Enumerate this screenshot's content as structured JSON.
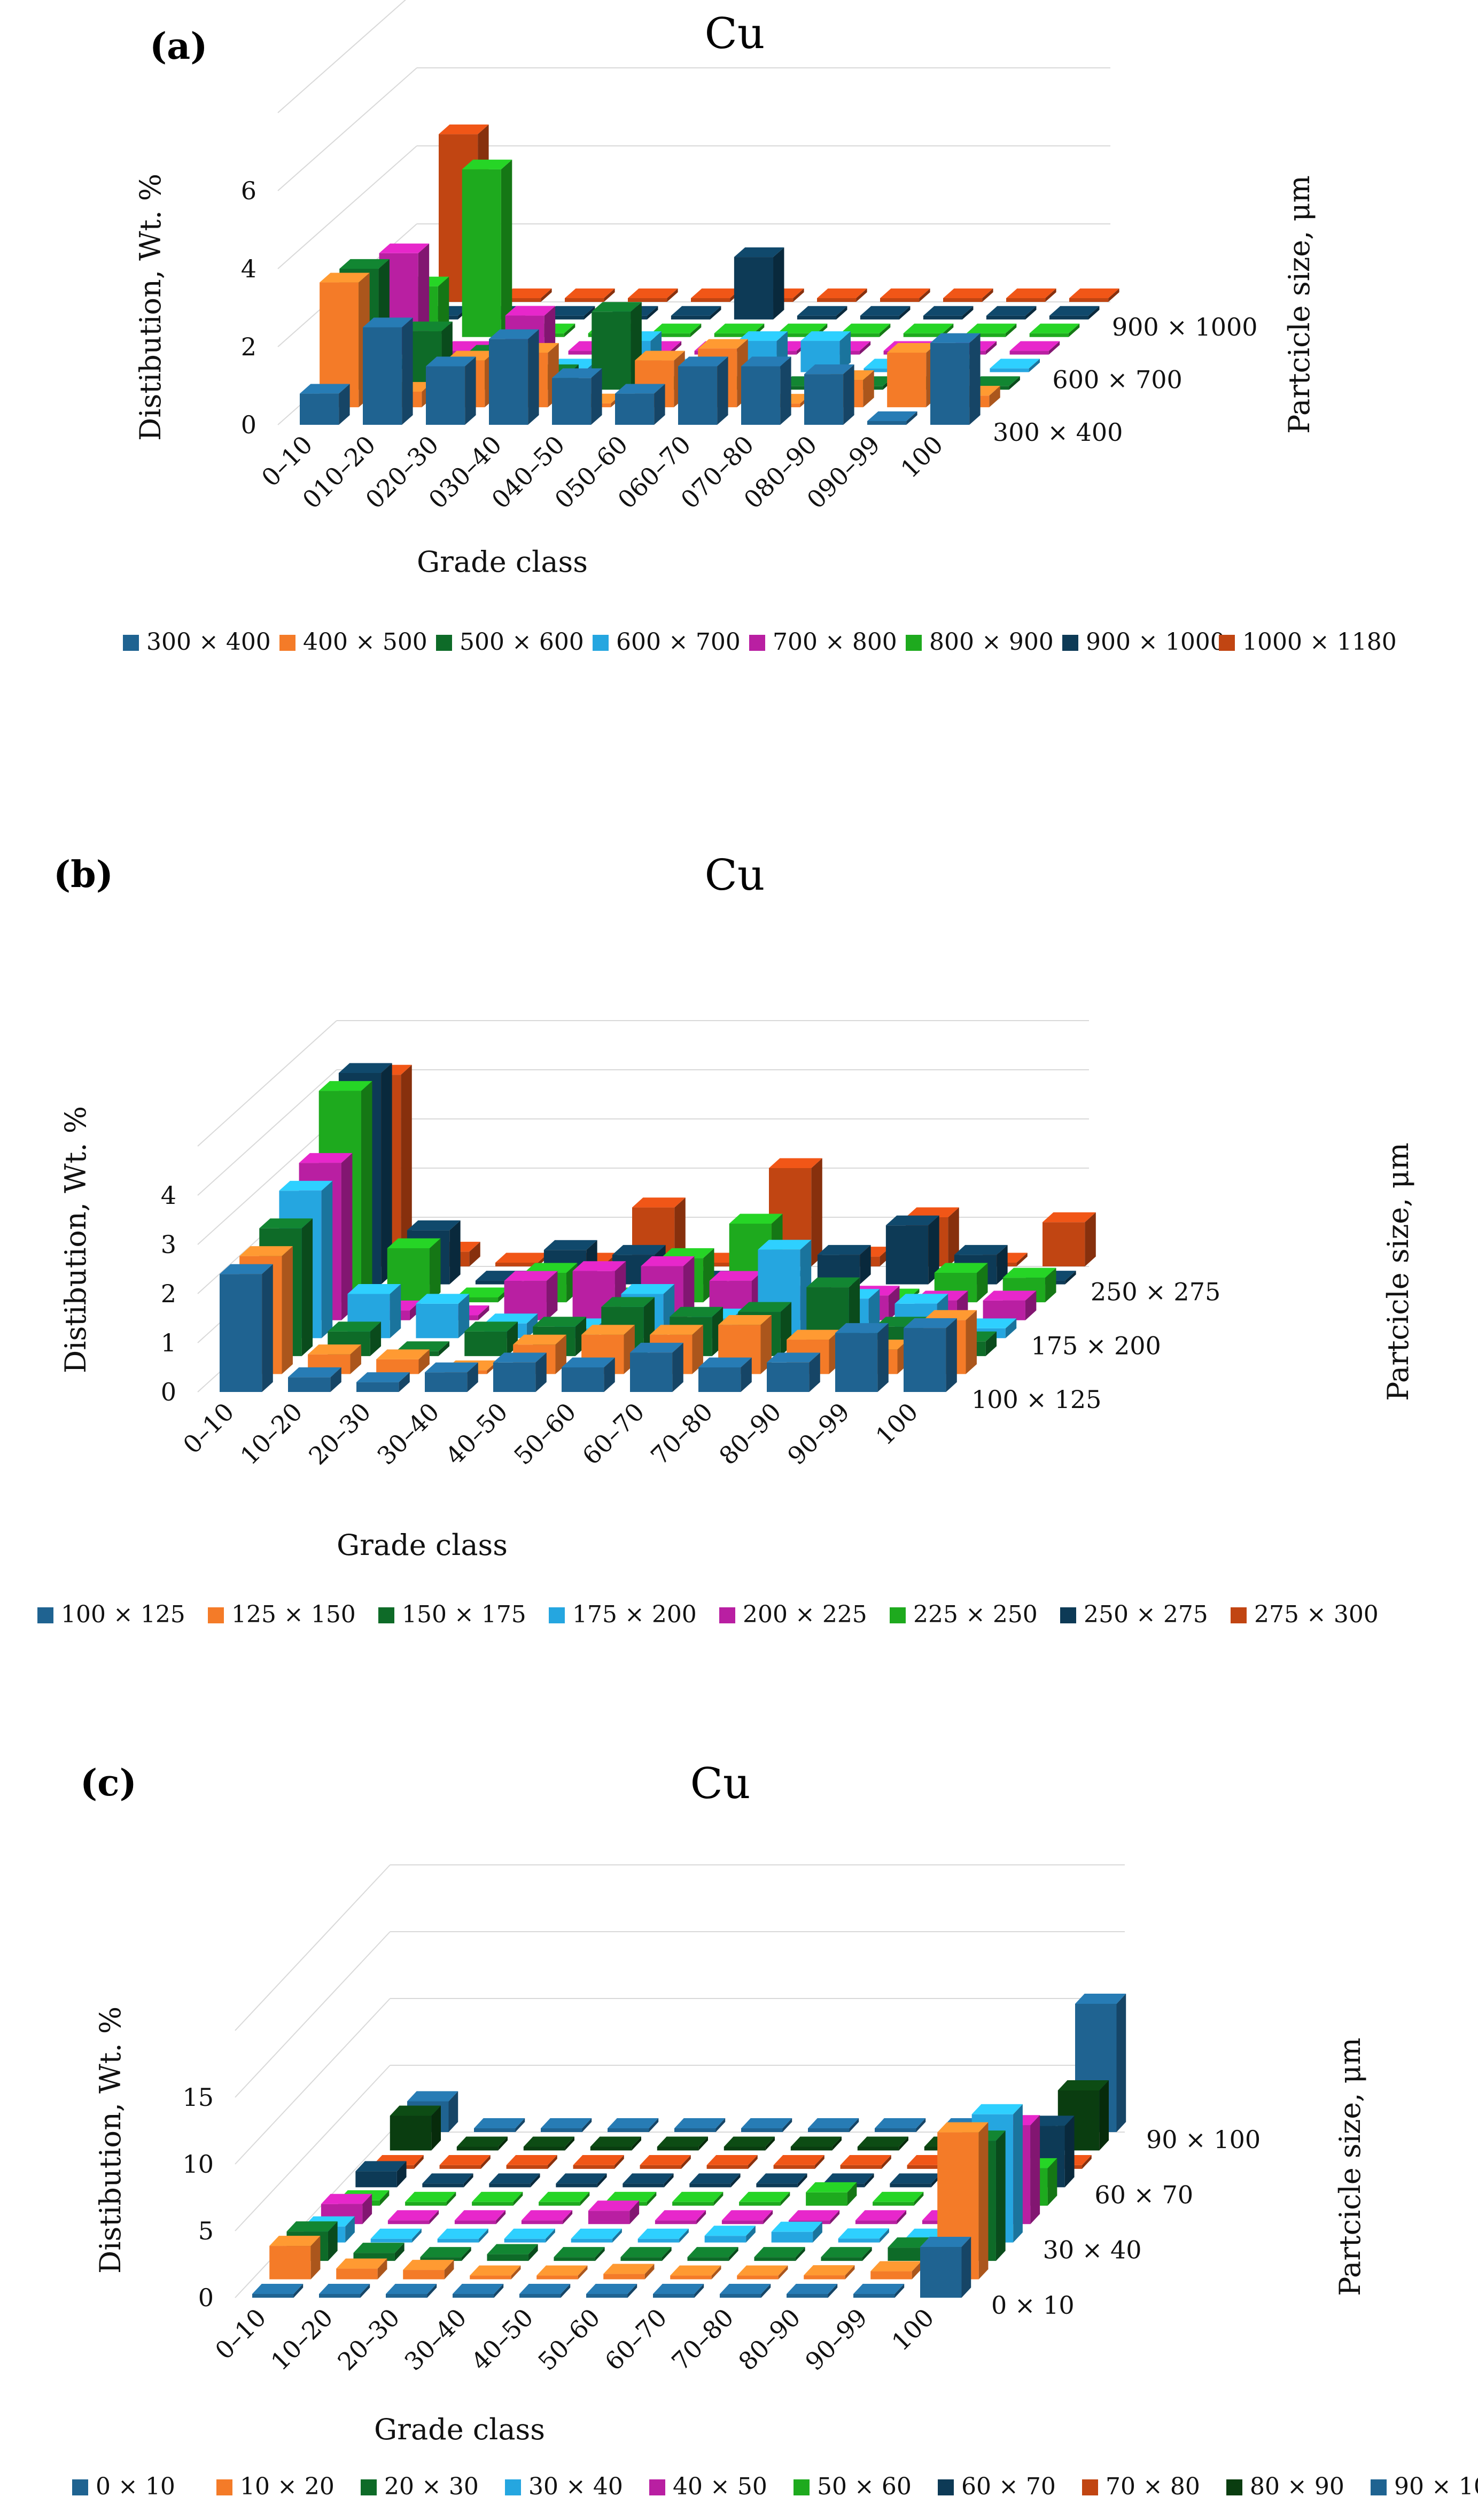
{
  "panels": [
    {
      "label": "(a)",
      "title": "Cu",
      "ylabel": "Distibution, Wt. %",
      "xlabel": "Grade class",
      "zlabel": "Partcicle size, μm",
      "yticks": [
        "0",
        "2",
        "4",
        "6"
      ],
      "zticks": [
        "300 × 400",
        "600 × 700",
        "900 × 1000"
      ],
      "ytickvals": [
        0,
        2,
        4,
        6
      ],
      "zticks_index": [
        0,
        3,
        6
      ],
      "chart_data": {
        "type": "bar",
        "title": "Cu",
        "xlabel": "Grade class",
        "ylabel": "Distibution, Wt. %",
        "zlabel": "Partcicle size, μm",
        "ylim": [
          0,
          8
        ],
        "categories": [
          "0–10",
          "010–20",
          "020–30",
          "030–40",
          "040–50",
          "050–60",
          "060–70",
          "070–80",
          "080–90",
          "090–99",
          "100"
        ],
        "series": [
          {
            "name": "300 × 400",
            "color": "#1f6391",
            "values": [
              0.8,
              2.5,
              1.5,
              2.2,
              1.2,
              0.8,
              1.5,
              1.5,
              1.3,
              0.0,
              2.1
            ]
          },
          {
            "name": "400 × 500",
            "color": "#f47b28",
            "values": [
              3.2,
              0.4,
              1.2,
              1.4,
              0.1,
              1.2,
              1.5,
              0.0,
              0.7,
              1.4,
              0.3
            ]
          },
          {
            "name": "500 × 600",
            "color": "#0e6b28",
            "values": [
              3.1,
              1.5,
              0.9,
              0.4,
              2.0,
              0.0,
              0.0,
              0.0,
              0.0,
              0.0,
              0.0
            ]
          },
          {
            "name": "600 × 700",
            "color": "#25a6e0",
            "values": [
              0.0,
              0.0,
              0.0,
              0.0,
              0.8,
              0.0,
              0.8,
              0.8,
              0.0,
              0.0,
              0.0
            ]
          },
          {
            "name": "700 × 800",
            "color": "#b91fa2",
            "values": [
              2.6,
              0.0,
              1.0,
              0.0,
              0.0,
              0.0,
              0.0,
              0.0,
              0.0,
              0.0,
              0.0
            ]
          },
          {
            "name": "800 × 900",
            "color": "#1eaa1e",
            "values": [
              1.3,
              4.3,
              0.0,
              0.0,
              0.0,
              0.0,
              0.0,
              0.0,
              0.0,
              0.0,
              0.0
            ]
          },
          {
            "name": "900 × 1000",
            "color": "#0d3a56",
            "values": [
              0.0,
              0.0,
              0.0,
              0.0,
              0.0,
              1.6,
              0.0,
              0.0,
              0.0,
              0.0,
              0.0
            ]
          },
          {
            "name": "1000 × 1180",
            "color": "#c14512",
            "values": [
              4.3,
              0.0,
              0.0,
              0.0,
              0.0,
              0.0,
              0.0,
              0.0,
              0.0,
              0.0,
              0.0
            ]
          }
        ]
      }
    },
    {
      "label": "(b)",
      "title": "Cu",
      "ylabel": "Distibution, Wt. %",
      "xlabel": "Grade class",
      "zlabel": "Partcicle size, μm",
      "yticks": [
        "0",
        "1",
        "2",
        "3",
        "4"
      ],
      "zticks": [
        "100 × 125",
        "175 × 200",
        "250 × 275"
      ],
      "ytickvals": [
        0,
        1,
        2,
        3,
        4
      ],
      "zticks_index": [
        0,
        3,
        6
      ],
      "chart_data": {
        "type": "bar",
        "title": "Cu",
        "xlabel": "Grade class",
        "ylabel": "Distibution, Wt. %",
        "zlabel": "Partcicle size, μm",
        "ylim": [
          0,
          5
        ],
        "categories": [
          "0–10",
          "10–20",
          "20–30",
          "30–40",
          "40–50",
          "50–60",
          "60–70",
          "70–80",
          "80–90",
          "90–99",
          "100"
        ],
        "series": [
          {
            "name": "100 × 125",
            "color": "#1f6391",
            "values": [
              2.4,
              0.3,
              0.2,
              0.4,
              0.6,
              0.5,
              0.8,
              0.5,
              0.6,
              1.2,
              1.3
            ]
          },
          {
            "name": "125 × 150",
            "color": "#f47b28",
            "values": [
              2.4,
              0.4,
              0.3,
              0.0,
              0.6,
              0.8,
              0.8,
              1.0,
              0.7,
              0.5,
              1.1
            ]
          },
          {
            "name": "150 × 175",
            "color": "#0e6b28",
            "values": [
              2.6,
              0.5,
              0.1,
              0.5,
              0.6,
              1.0,
              0.8,
              0.9,
              1.4,
              0.6,
              0.3
            ]
          },
          {
            "name": "175 × 200",
            "color": "#25a6e0",
            "values": [
              3.0,
              0.9,
              0.7,
              0.3,
              0.2,
              0.9,
              0.4,
              1.8,
              0.8,
              0.7,
              0.2
            ]
          },
          {
            "name": "200 × 225",
            "color": "#b91fa2",
            "values": [
              3.2,
              0.2,
              0.1,
              0.8,
              1.0,
              1.1,
              0.8,
              0.5,
              0.5,
              0.4,
              0.4
            ]
          },
          {
            "name": "225 × 250",
            "color": "#1eaa1e",
            "values": [
              4.3,
              1.1,
              0.1,
              0.6,
              0.1,
              0.9,
              1.6,
              0.1,
              0.0,
              0.6,
              0.5
            ]
          },
          {
            "name": "250 × 275",
            "color": "#0d3a56",
            "values": [
              4.3,
              1.1,
              0.0,
              0.7,
              0.6,
              0.0,
              0.0,
              0.6,
              1.2,
              0.6,
              0.0
            ]
          },
          {
            "name": "275 × 300",
            "color": "#c14512",
            "values": [
              3.9,
              0.3,
              0.0,
              0.0,
              1.2,
              0.0,
              2.0,
              0.2,
              1.0,
              0.0,
              0.9
            ]
          }
        ]
      }
    },
    {
      "label": "(c)",
      "title": "Cu",
      "ylabel": "Distibution, Wt. %",
      "xlabel": "Grade class",
      "zlabel": "Partcicle size, μm",
      "yticks": [
        "0",
        "5",
        "10",
        "15"
      ],
      "zticks": [
        "0 × 10",
        "30 × 40",
        "60 × 70",
        "90 × 100"
      ],
      "ytickvals": [
        0,
        5,
        10,
        15
      ],
      "zticks_index": [
        0,
        3,
        6,
        9
      ],
      "chart_data": {
        "type": "bar",
        "title": "Cu",
        "xlabel": "Grade class",
        "ylabel": "Distibution, Wt. %",
        "zlabel": "Partcicle size, μm",
        "ylim": [
          0,
          20
        ],
        "categories": [
          "0–10",
          "10–20",
          "20–30",
          "30–40",
          "40–50",
          "50–60",
          "60–70",
          "70–80",
          "80–90",
          "90–99",
          "100"
        ],
        "series": [
          {
            "name": "0 × 10",
            "color": "#1f6391",
            "values": [
              0.0,
              0.0,
              0.0,
              0.0,
              0.0,
              0.0,
              0.0,
              0.0,
              0.0,
              0.0,
              3.8
            ]
          },
          {
            "name": "10 × 20",
            "color": "#f47b28",
            "values": [
              2.5,
              0.8,
              0.7,
              0.2,
              0.2,
              0.4,
              0.2,
              0.1,
              0.3,
              0.6,
              11.0
            ]
          },
          {
            "name": "20 × 30",
            "color": "#0e6b28",
            "values": [
              2.2,
              0.6,
              0.0,
              0.5,
              0.0,
              0.0,
              0.0,
              0.0,
              0.0,
              1.0,
              9.0
            ]
          },
          {
            "name": "30 × 40",
            "color": "#25a6e0",
            "values": [
              1.2,
              0.0,
              0.0,
              0.0,
              0.0,
              0.0,
              0.5,
              0.8,
              0.3,
              0.0,
              9.6
            ]
          },
          {
            "name": "40 × 50",
            "color": "#b91fa2",
            "values": [
              1.5,
              0.0,
              0.0,
              0.0,
              1.0,
              0.0,
              0.2,
              0.0,
              0.0,
              0.0,
              7.4
            ]
          },
          {
            "name": "50 × 60",
            "color": "#1eaa1e",
            "values": [
              0.4,
              0.0,
              0.0,
              0.0,
              0.0,
              0.0,
              0.0,
              1.0,
              0.0,
              0.0,
              2.8
            ]
          },
          {
            "name": "60 × 70",
            "color": "#0d3a56",
            "values": [
              1.2,
              0.0,
              0.0,
              0.0,
              0.0,
              0.0,
              0.0,
              0.0,
              0.0,
              0.0,
              4.6
            ]
          },
          {
            "name": "70 × 80",
            "color": "#c14512",
            "values": [
              0.0,
              0.0,
              0.0,
              0.0,
              0.0,
              0.0,
              0.0,
              0.0,
              0.0,
              0.0,
              0.0
            ]
          },
          {
            "name": "80 × 90",
            "color": "#0a3d10",
            "values": [
              2.6,
              0.0,
              0.0,
              0.0,
              0.0,
              0.0,
              0.0,
              0.0,
              0.0,
              0.0,
              4.5
            ]
          },
          {
            "name": "90 × 100",
            "color": "#1f6391",
            "values": [
              2.3,
              0.0,
              0.0,
              0.0,
              0.0,
              0.0,
              0.0,
              0.0,
              0.0,
              0.0,
              9.6
            ]
          }
        ]
      }
    }
  ]
}
